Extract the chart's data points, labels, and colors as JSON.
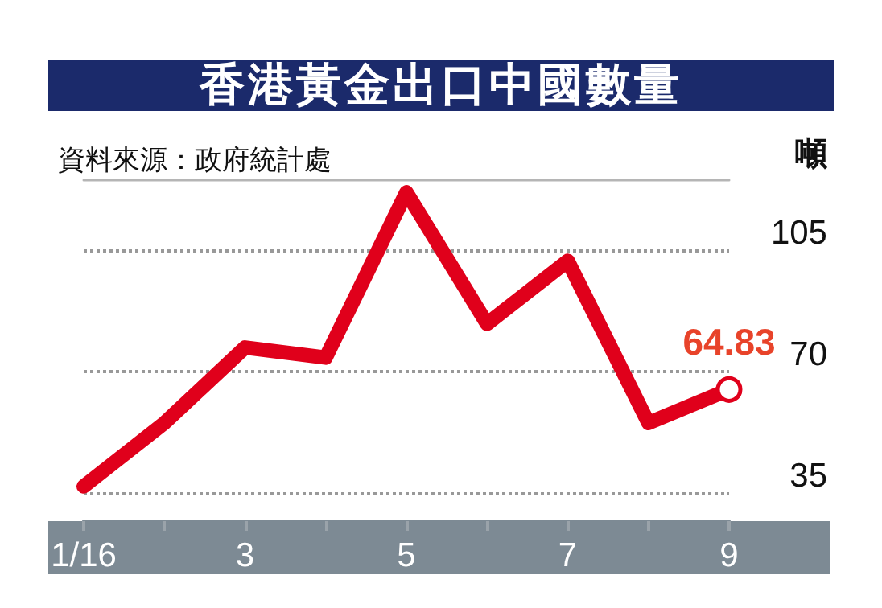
{
  "chart_data": {
    "type": "line",
    "title": "香港黃金出口中國數量",
    "ylabel": "噸",
    "annotations": [
      "資料來源：政府統計處"
    ],
    "categories": [
      "1/16",
      null,
      "3",
      null,
      "5",
      null,
      "7",
      null,
      "9"
    ],
    "series": [
      {
        "color": "#e0001b",
        "values": [
          37,
          55.2,
          76.9,
          74,
          121.5,
          83.7,
          101.8,
          55.2,
          64.83
        ],
        "value_labels": [
          null,
          null,
          null,
          null,
          null,
          null,
          null,
          null,
          "64.83"
        ]
      }
    ],
    "ylim": [
      27,
      125
    ],
    "yticks": [
      35,
      70,
      105
    ],
    "grid": "y"
  }
}
